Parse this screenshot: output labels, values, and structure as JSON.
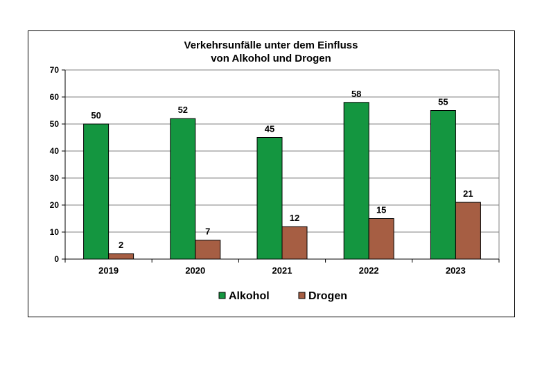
{
  "chart_data": {
    "type": "bar",
    "title_lines": [
      "Verkehrsunfälle  unter dem Einfluss",
      "von Alkohol  und Drogen"
    ],
    "categories": [
      "2019",
      "2020",
      "2021",
      "2022",
      "2023"
    ],
    "series": [
      {
        "name": "Alkohol",
        "color": "#149640",
        "values": [
          50,
          52,
          45,
          58,
          55
        ]
      },
      {
        "name": "Drogen",
        "color": "#A65E43",
        "values": [
          2,
          7,
          12,
          15,
          21
        ]
      }
    ],
    "ylim": [
      0,
      70
    ],
    "yticks": [
      0,
      10,
      20,
      30,
      40,
      50,
      60,
      70
    ],
    "grid": true,
    "plot_background": "#ffffff",
    "legend_position": "bottom",
    "xlabel": "",
    "ylabel": ""
  }
}
